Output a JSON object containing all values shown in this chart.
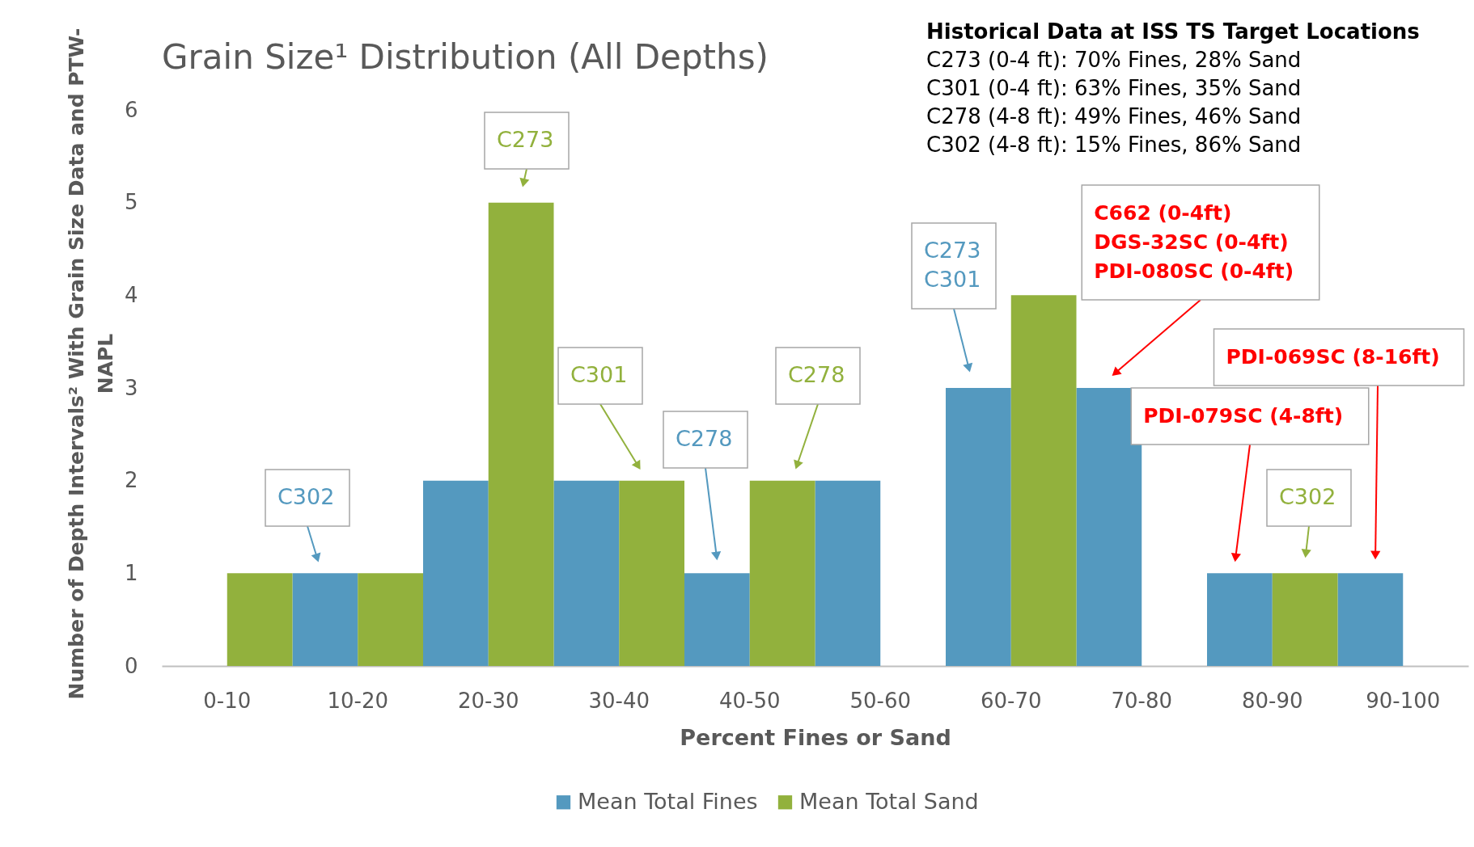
{
  "chart_data": {
    "type": "bar",
    "title": "Grain Size¹ Distribution (All Depths)",
    "xlabel": "Percent Fines or Sand",
    "ylabel": "Number of Depth Intervals² With Grain Size Data and PTW-NAPL",
    "categories": [
      "0-10",
      "10-20",
      "20-30",
      "30-40",
      "40-50",
      "50-60",
      "60-70",
      "70-80",
      "80-90",
      "90-100"
    ],
    "series": [
      {
        "name": "Mean Total Fines",
        "color": "#5499bf",
        "values": [
          0,
          1,
          2,
          2,
          1,
          2,
          3,
          3,
          1,
          1
        ]
      },
      {
        "name": "Mean Total Sand",
        "color": "#92b13d",
        "values": [
          1,
          1,
          5,
          2,
          2,
          0,
          4,
          0,
          1,
          0
        ]
      }
    ],
    "ylim": [
      0,
      6
    ],
    "yticks": [
      0,
      1,
      2,
      3,
      4,
      5,
      6
    ],
    "grid": false,
    "legend": "bottom",
    "annotations": [
      "Historical Data at ISS TS Target Locations",
      "C273 (0-4 ft): 70% Fines, 28% Sand",
      "C301 (0-4 ft): 63% Fines, 35% Sand",
      "C278 (4-8 ft): 49% Fines, 46% Sand",
      "C302 (4-8 ft): 15% Fines, 86% Sand",
      "C302",
      "C273",
      "C301",
      "C278",
      "C278",
      "C273\nC301",
      "C302",
      "C662 (0-4ft)\nDGS-32SC (0-4ft)\nPDI-080SC (0-4ft)",
      "PDI-079SC (4-8ft)",
      "PDI-069SC (8-16ft)"
    ]
  }
}
